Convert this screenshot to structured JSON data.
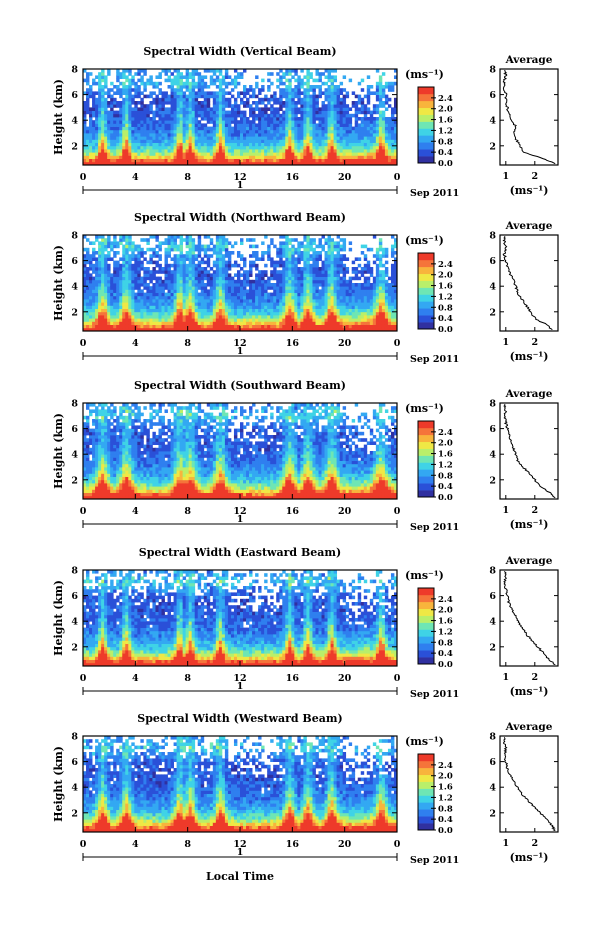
{
  "figure": {
    "x_axis_label": "Local Time",
    "date_label": "Sep 2011",
    "day_label": "1",
    "colormap": [
      "#3030a0",
      "#2a50d8",
      "#2f7fef",
      "#33a8f2",
      "#3fd3e6",
      "#6ee6b4",
      "#b9ef6a",
      "#efe845",
      "#f8b43c",
      "#f5743a",
      "#ee3a2a"
    ]
  },
  "chart_data": [
    {
      "type": "heatmap",
      "title": "Spectral Width (Vertical Beam)",
      "ylabel": "Height (km)",
      "x_ticks": [
        "0",
        "4",
        "8",
        "12",
        "16",
        "20",
        "0"
      ],
      "xlim": [
        0,
        24
      ],
      "ylim": [
        0.5,
        8
      ],
      "y_ticks": [
        "2",
        "4",
        "6",
        "8"
      ],
      "colorbar": {
        "unit": "(ms⁻¹)",
        "ticks": [
          "0.0",
          "0.4",
          "0.8",
          "1.2",
          "1.6",
          "2.0",
          "2.4"
        ],
        "range": [
          0,
          2.8
        ]
      },
      "average": {
        "title": "Average",
        "x_ticks": [
          "1",
          "2"
        ],
        "xlabel": "(ms⁻¹)",
        "y_ticks": [
          "2",
          "4",
          "6",
          "8"
        ],
        "height": [
          0.6,
          1.0,
          1.5,
          2.0,
          2.5,
          3.0,
          3.5,
          4.0,
          4.5,
          5.0,
          5.5,
          6.0,
          6.5,
          7.0,
          7.5,
          7.9
        ],
        "width": [
          2.7,
          2.3,
          1.6,
          1.5,
          1.35,
          1.25,
          1.35,
          1.2,
          1.1,
          1.05,
          1.0,
          1.0,
          0.95,
          0.95,
          1.0,
          0.95
        ]
      }
    },
    {
      "type": "heatmap",
      "title": "Spectral Width (Northward Beam)",
      "ylabel": "Height (km)",
      "x_ticks": [
        "0",
        "4",
        "8",
        "12",
        "16",
        "20",
        "0"
      ],
      "xlim": [
        0,
        24
      ],
      "ylim": [
        0.5,
        8
      ],
      "y_ticks": [
        "2",
        "4",
        "6",
        "8"
      ],
      "colorbar": {
        "unit": "(ms⁻¹)",
        "ticks": [
          "0.0",
          "0.4",
          "0.8",
          "1.2",
          "1.6",
          "2.0",
          "2.4"
        ],
        "range": [
          0,
          2.8
        ]
      },
      "average": {
        "title": "Average",
        "x_ticks": [
          "1",
          "2"
        ],
        "xlabel": "(ms⁻¹)",
        "y_ticks": [
          "2",
          "4",
          "6",
          "8"
        ],
        "height": [
          0.6,
          1.0,
          1.5,
          2.0,
          2.5,
          3.0,
          3.5,
          4.0,
          4.5,
          5.0,
          5.5,
          6.0,
          6.5,
          7.0,
          7.5,
          7.9
        ],
        "width": [
          2.6,
          2.4,
          2.0,
          1.85,
          1.7,
          1.55,
          1.4,
          1.35,
          1.25,
          1.15,
          1.05,
          1.0,
          0.95,
          1.0,
          0.95,
          0.95
        ]
      }
    },
    {
      "type": "heatmap",
      "title": "Spectral Width (Southward Beam)",
      "ylabel": "Height (km)",
      "x_ticks": [
        "0",
        "4",
        "8",
        "12",
        "16",
        "20",
        "0"
      ],
      "xlim": [
        0,
        24
      ],
      "ylim": [
        0.5,
        8
      ],
      "y_ticks": [
        "2",
        "4",
        "6",
        "8"
      ],
      "colorbar": {
        "unit": "(ms⁻¹)",
        "ticks": [
          "0.0",
          "0.4",
          "0.8",
          "1.2",
          "1.6",
          "2.0",
          "2.4"
        ],
        "range": [
          0,
          2.8
        ]
      },
      "average": {
        "title": "Average",
        "x_ticks": [
          "1",
          "2"
        ],
        "xlabel": "(ms⁻¹)",
        "y_ticks": [
          "2",
          "4",
          "6",
          "8"
        ],
        "height": [
          0.6,
          1.0,
          1.5,
          2.0,
          2.5,
          3.0,
          3.5,
          4.0,
          4.5,
          5.0,
          5.5,
          6.0,
          6.5,
          7.0,
          7.5,
          7.9
        ],
        "width": [
          2.7,
          2.5,
          2.2,
          2.0,
          1.8,
          1.6,
          1.4,
          1.35,
          1.25,
          1.2,
          1.1,
          1.05,
          1.0,
          0.95,
          1.0,
          0.95
        ]
      }
    },
    {
      "type": "heatmap",
      "title": "Spectral Width (Eastward Beam)",
      "ylabel": "Height (km)",
      "x_ticks": [
        "0",
        "4",
        "8",
        "12",
        "16",
        "20",
        "0"
      ],
      "xlim": [
        0,
        24
      ],
      "ylim": [
        0.5,
        8
      ],
      "y_ticks": [
        "2",
        "4",
        "6",
        "8"
      ],
      "colorbar": {
        "unit": "(ms⁻¹)",
        "ticks": [
          "0.0",
          "0.4",
          "0.8",
          "1.2",
          "1.6",
          "2.0",
          "2.4"
        ],
        "range": [
          0,
          2.8
        ]
      },
      "average": {
        "title": "Average",
        "x_ticks": [
          "1",
          "2"
        ],
        "xlabel": "(ms⁻¹)",
        "y_ticks": [
          "2",
          "4",
          "6",
          "8"
        ],
        "height": [
          0.6,
          1.0,
          1.5,
          2.0,
          2.5,
          3.0,
          3.5,
          4.0,
          4.5,
          5.0,
          5.5,
          6.0,
          6.5,
          7.0,
          7.5,
          7.9
        ],
        "width": [
          2.7,
          2.5,
          2.3,
          2.1,
          1.9,
          1.7,
          1.55,
          1.45,
          1.3,
          1.2,
          1.1,
          1.05,
          1.0,
          0.95,
          1.0,
          0.95
        ]
      }
    },
    {
      "type": "heatmap",
      "title": "Spectral Width (Westward Beam)",
      "ylabel": "Height (km)",
      "x_ticks": [
        "0",
        "4",
        "8",
        "12",
        "16",
        "20",
        "0"
      ],
      "xlim": [
        0,
        24
      ],
      "ylim": [
        0.5,
        8
      ],
      "y_ticks": [
        "2",
        "4",
        "6",
        "8"
      ],
      "colorbar": {
        "unit": "(ms⁻¹)",
        "ticks": [
          "0.0",
          "0.4",
          "0.8",
          "1.2",
          "1.6",
          "2.0",
          "2.4"
        ],
        "range": [
          0,
          2.8
        ]
      },
      "average": {
        "title": "Average",
        "x_ticks": [
          "1",
          "2"
        ],
        "xlabel": "(ms⁻¹)",
        "y_ticks": [
          "2",
          "4",
          "6",
          "8"
        ],
        "height": [
          0.6,
          1.0,
          1.5,
          2.0,
          2.5,
          3.0,
          3.5,
          4.0,
          4.5,
          5.0,
          5.5,
          6.0,
          6.5,
          7.0,
          7.5,
          7.9
        ],
        "width": [
          2.7,
          2.6,
          2.4,
          2.2,
          1.95,
          1.75,
          1.55,
          1.4,
          1.25,
          1.15,
          1.05,
          1.0,
          0.95,
          1.0,
          0.95,
          0.95
        ]
      }
    }
  ]
}
